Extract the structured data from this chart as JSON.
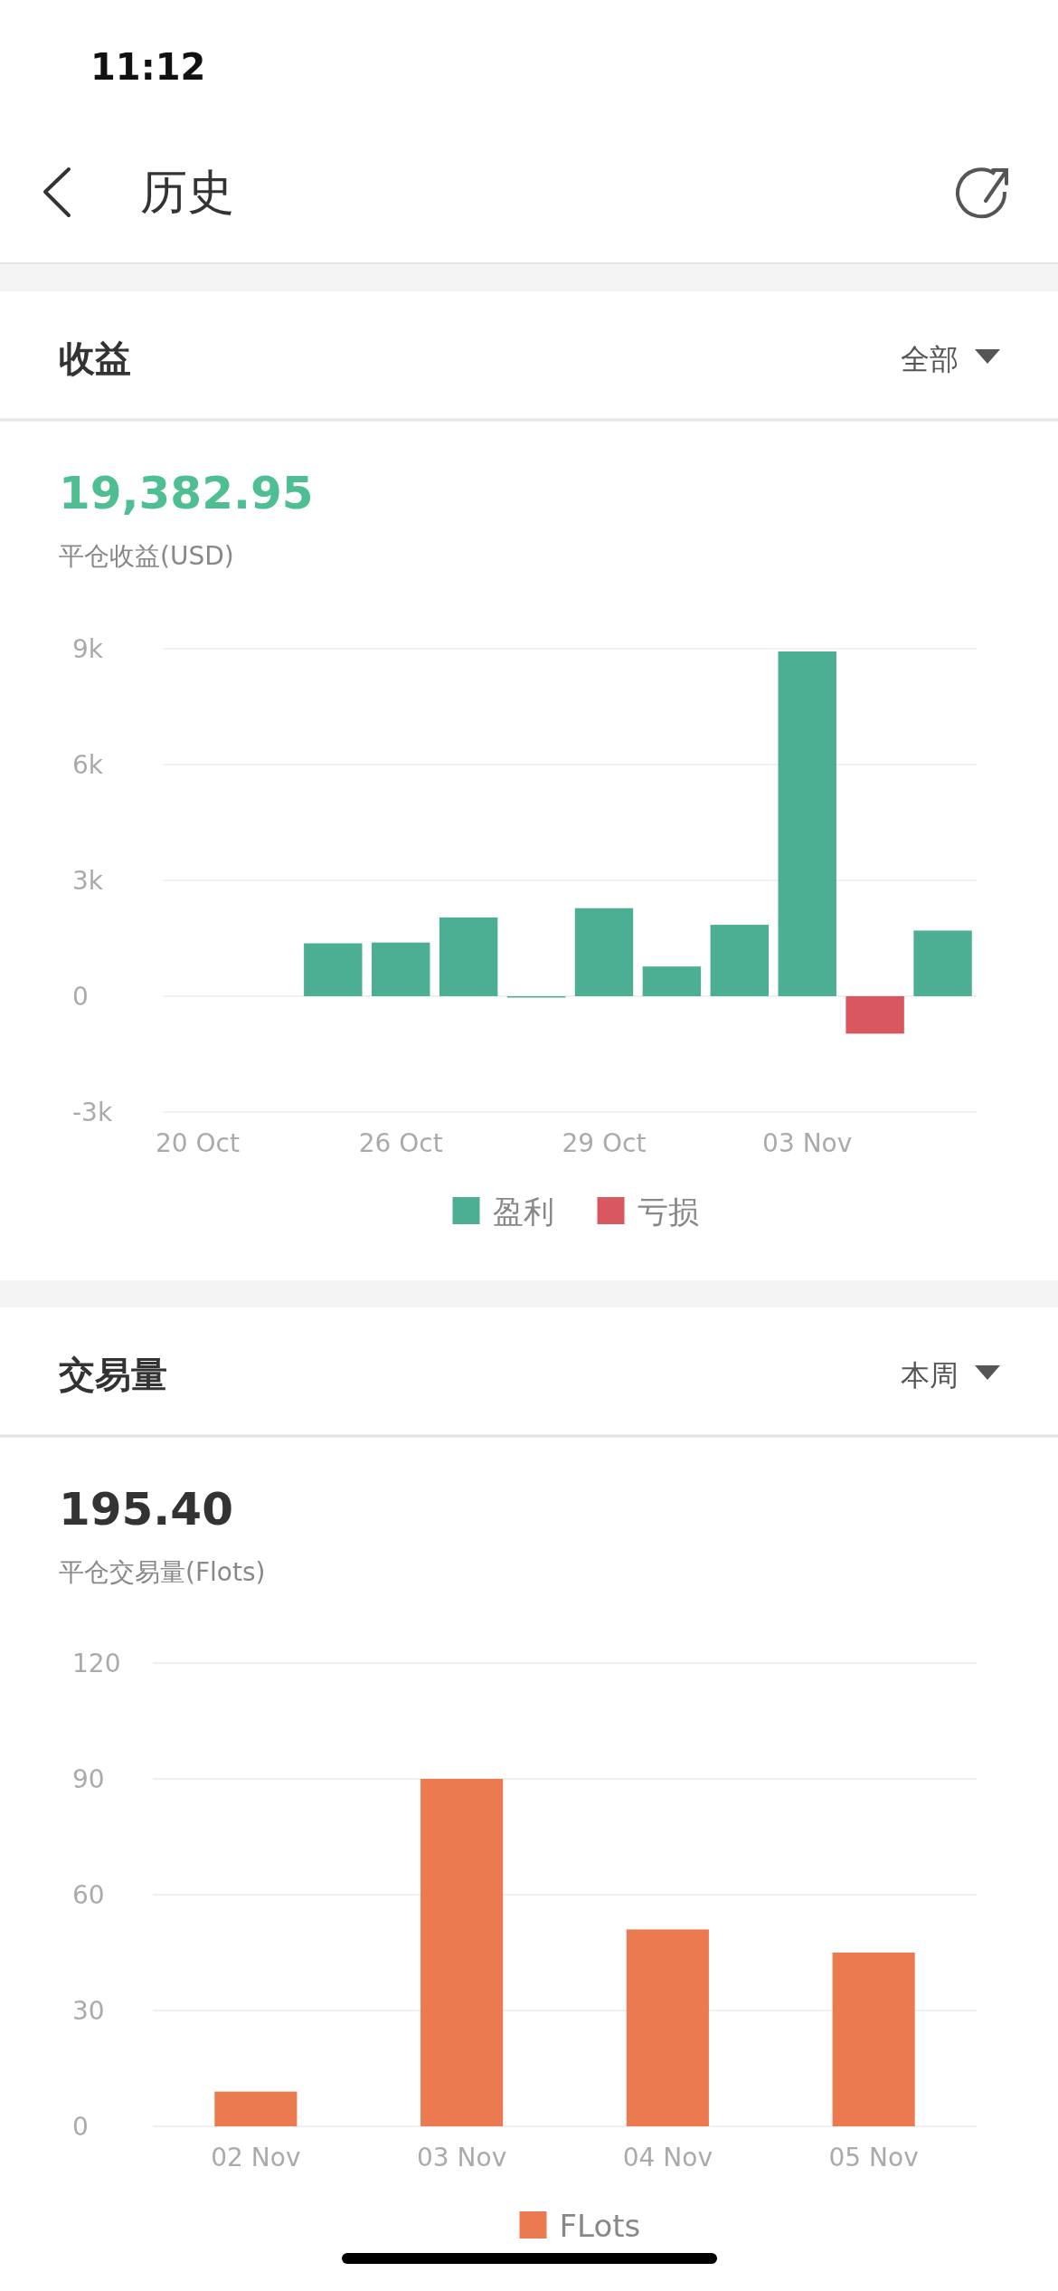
{
  "chart_data": [
    {
      "type": "bar",
      "title": "收益",
      "subtitle": "19,382.95",
      "ylabel": "平仓收益(USD)",
      "annotations": [
        "11:12",
        "历史",
        "全部"
      ],
      "categories": [
        "20 Oct",
        null,
        null,
        "26 Oct",
        null,
        null,
        "29 Oct",
        null,
        null,
        "03 Nov",
        null,
        null
      ],
      "series": [
        {
          "name": "盈利",
          "color": "#4caf93",
          "values": [
            null,
            null,
            1370,
            1390,
            2040,
            0,
            2280,
            770,
            1850,
            8930,
            null,
            1700
          ]
        },
        {
          "name": "亏损",
          "color": "#d9575e",
          "values": [
            null,
            null,
            null,
            null,
            null,
            null,
            null,
            null,
            null,
            null,
            -970,
            null
          ]
        }
      ],
      "stacked": true,
      "ylim": [
        -3000,
        9000
      ],
      "yticks": [
        {
          "value": -3000,
          "label": "-3k"
        },
        0,
        {
          "value": 3000,
          "label": "3k"
        },
        {
          "value": 6000,
          "label": "6k"
        },
        {
          "value": 9000,
          "label": "9k"
        }
      ],
      "grid": "y",
      "legend": "bottom"
    },
    {
      "type": "bar",
      "title": "交易量",
      "subtitle": "195.40",
      "ylabel": "平仓交易量(Flots)",
      "annotations": [
        "本周"
      ],
      "categories": [
        "02 Nov",
        "03 Nov",
        "04 Nov",
        "05 Nov"
      ],
      "series": [
        {
          "name": "FLots",
          "color": "#ec7a50",
          "values": [
            9,
            90,
            51,
            45
          ]
        }
      ],
      "ylim": [
        0,
        120
      ],
      "yticks": [
        0,
        30,
        60,
        90,
        120
      ],
      "grid": "y",
      "legend": "bottom"
    }
  ]
}
